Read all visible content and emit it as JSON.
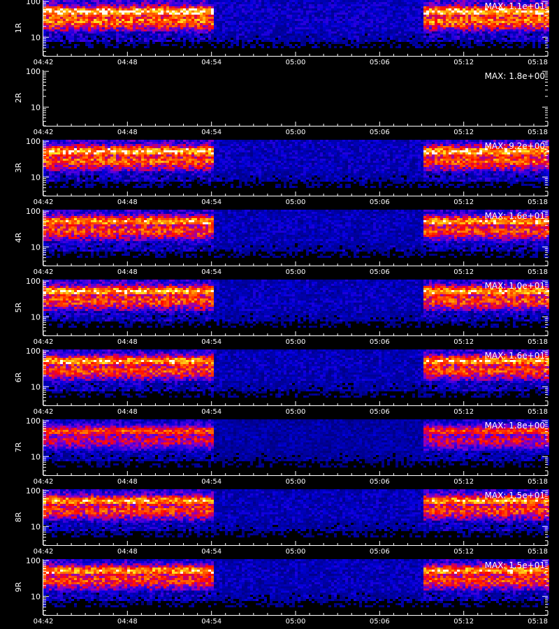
{
  "chart_data": {
    "type": "heatmap",
    "x_tick_labels": [
      "04:42",
      "04:48",
      "04:54",
      "05:00",
      "05:06",
      "05:12",
      "05:18"
    ],
    "x_range": [
      "04:42",
      "05:18"
    ],
    "y_scale": "log",
    "y_range": [
      3,
      110
    ],
    "y_tick_labels": [
      "10",
      "100"
    ],
    "xlabel": "",
    "low_activity_interval": [
      "04:54",
      "05:09"
    ],
    "panels": [
      {
        "label": "1R",
        "max_text": "MAX: 1.1e+01",
        "intensity": 1.0
      },
      {
        "label": "2R",
        "max_text": "MAX: 1.8e+00",
        "intensity": 0.0
      },
      {
        "label": "3R",
        "max_text": "MAX: 9.2e+00",
        "intensity": 0.95
      },
      {
        "label": "4R",
        "max_text": "MAX: 1.6e+01",
        "intensity": 0.9
      },
      {
        "label": "5R",
        "max_text": "MAX: 1.0e+01",
        "intensity": 0.92
      },
      {
        "label": "6R",
        "max_text": "MAX: 1.6e+01",
        "intensity": 0.9
      },
      {
        "label": "7R",
        "max_text": "MAX: 1.8e+00",
        "intensity": 0.75
      },
      {
        "label": "8R",
        "max_text": "MAX: 1.5e+01",
        "intensity": 0.9
      },
      {
        "label": "9R",
        "max_text": "MAX: 1.5e+01",
        "intensity": 0.9
      }
    ]
  }
}
